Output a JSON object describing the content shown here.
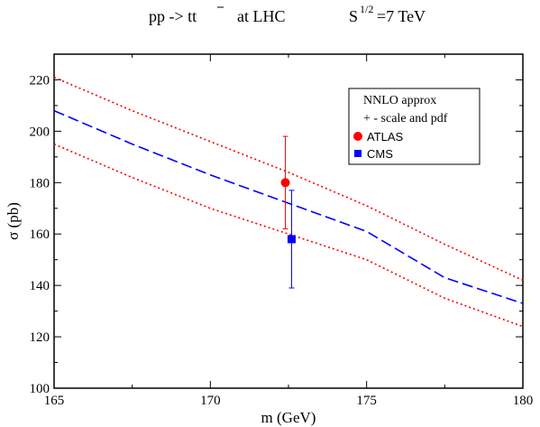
{
  "chart_data": {
    "type": "line",
    "title": {
      "process_prefix": "pp -> t",
      "process_tbar": "t",
      "at": "at  LHC",
      "energy_base": "S",
      "energy_sup": "1/2",
      "energy_value": "=7 TeV"
    },
    "xlabel": "m (GeV)",
    "ylabel": "σ (pb)",
    "xlim": [
      165,
      180
    ],
    "ylim": [
      100,
      230
    ],
    "xticks": [
      165,
      170,
      175,
      180
    ],
    "yticks": [
      100,
      120,
      140,
      160,
      180,
      200,
      220
    ],
    "grid": false,
    "legend": {
      "placement": "top-right",
      "header_line1": "NNLO approx",
      "header_line2": "+ - scale and pdf",
      "entries": [
        {
          "name": "ATLAS",
          "marker": "circle",
          "color": "#ff0000"
        },
        {
          "name": "CMS",
          "marker": "square",
          "color": "#0000ff"
        }
      ]
    },
    "series": [
      {
        "role": "central",
        "style": "dashed",
        "color": "#0000ff",
        "x": [
          165,
          167.5,
          170,
          172.5,
          175,
          177.5,
          180
        ],
        "y": [
          208,
          195,
          183,
          172,
          161,
          143,
          133
        ]
      },
      {
        "role": "upper",
        "style": "dotted",
        "color": "#ff0000",
        "x": [
          165,
          167.5,
          170,
          172.5,
          175,
          177.5,
          180
        ],
        "y": [
          221,
          208,
          196,
          184,
          171,
          156,
          142
        ]
      },
      {
        "role": "lower",
        "style": "dotted",
        "color": "#ff0000",
        "x": [
          165,
          167.5,
          170,
          172.5,
          175,
          177.5,
          180
        ],
        "y": [
          195,
          182,
          170,
          160,
          150,
          135,
          124
        ]
      }
    ],
    "points": [
      {
        "name": "ATLAS",
        "marker": "circle",
        "color": "#ff0000",
        "x": 172.4,
        "y": 180,
        "yerr_low": 162,
        "yerr_high": 198
      },
      {
        "name": "CMS",
        "marker": "square",
        "color": "#0000ff",
        "x": 172.6,
        "y": 158,
        "yerr_low": 139,
        "yerr_high": 177
      }
    ]
  }
}
